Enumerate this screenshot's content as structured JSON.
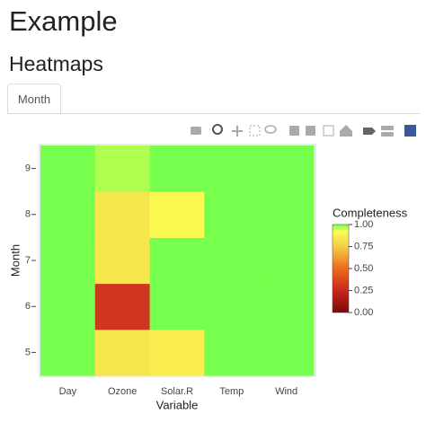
{
  "header": {
    "title": "Example",
    "subtitle": "Heatmaps"
  },
  "tabs": [
    "Month"
  ],
  "chart_data": {
    "type": "heatmap",
    "x_label": "Variable",
    "y_label": "Month",
    "categories": [
      "Day",
      "Ozone",
      "Solar.R",
      "Temp",
      "Wind"
    ],
    "y": [
      5,
      6,
      7,
      8,
      9
    ],
    "z": [
      [
        1,
        0.839,
        0.871,
        1,
        1
      ],
      [
        1,
        0.3,
        1,
        1,
        1
      ],
      [
        1,
        0.839,
        1,
        1,
        1
      ],
      [
        1,
        0.839,
        0.903,
        1,
        1
      ],
      [
        1,
        0.967,
        1,
        1,
        1
      ]
    ],
    "ylim": [
      4.5,
      9.5
    ],
    "yticks": [
      5,
      6,
      7,
      8,
      9
    ],
    "colorbar_title": "Completeness",
    "zlim": [
      0,
      1
    ],
    "zticks": [
      {
        "value": 0,
        "label": "0.00"
      },
      {
        "value": 0.25,
        "label": "0.25"
      },
      {
        "value": 0.5,
        "label": "0.50"
      },
      {
        "value": 0.75,
        "label": "0.75"
      },
      {
        "value": 1,
        "label": "1.00"
      }
    ],
    "colorscale": [
      [
        0,
        "#7a0a0a"
      ],
      [
        0.25,
        "#c8281c"
      ],
      [
        0.5,
        "#ee6a1f"
      ],
      [
        0.75,
        "#f2cf48"
      ],
      [
        0.88,
        "#fbf050"
      ],
      [
        0.92,
        "#ffff55"
      ],
      [
        1,
        "#77ff4d"
      ]
    ]
  }
}
